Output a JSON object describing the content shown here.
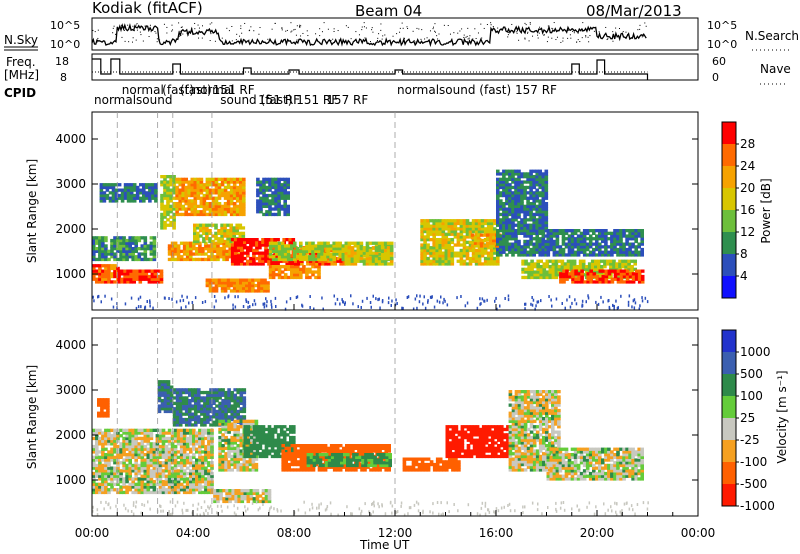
{
  "header": {
    "station": "Kodiak (fitACF)",
    "beam": "Beam 04",
    "date": "08/Mar/2013"
  },
  "noise_panel": {
    "left_label": "N.Sky",
    "right_label": "N.Search",
    "left_ticks": [
      "10^5",
      "10^0"
    ],
    "right_ticks": [
      "10^5",
      "10^0"
    ]
  },
  "freq_panel": {
    "left_label_1": "Freq.",
    "left_label_2": "[MHz]",
    "left_ticks": [
      "18",
      "8"
    ],
    "right_label": "Nave",
    "right_ticks": [
      "60",
      "0"
    ]
  },
  "cpid": {
    "label": "CPID",
    "labels": [
      {
        "text": "normal",
        "t": 1.1,
        "row": 1
      },
      {
        "text": "(fast)",
        "t": 2.7,
        "row": 1
      },
      {
        "text": "(fast)",
        "t": 3.4,
        "row": 1
      },
      {
        "text": "normalsound",
        "t": 0.0,
        "row": 2
      },
      {
        "text": "normal",
        "t": 3.9,
        "row": 1
      },
      {
        "text": "151 RF",
        "t": 4.7,
        "row": 1
      },
      {
        "text": "sound (fast) 151 RF",
        "t": 5.0,
        "row": 2
      },
      {
        "text": "151 RF",
        "t": 6.5,
        "row": 2
      },
      {
        "text": "157 RF",
        "t": 9.2,
        "row": 2
      },
      {
        "text": "normalsound (fast) 157 RF",
        "t": 12.0,
        "row": 1
      }
    ],
    "markers": [
      1.0,
      2.6,
      3.2,
      4.75,
      12.0
    ]
  },
  "power_colorbar": {
    "label": "Power [dB]",
    "ticks": [
      "28",
      "24",
      "20",
      "16",
      "12",
      "8",
      "4"
    ],
    "colors": [
      "#ff0000",
      "#ff6a00",
      "#f6a200",
      "#d8c600",
      "#6dbf3b",
      "#2f8f4f",
      "#2c4fbb",
      "#1010ff"
    ]
  },
  "velocity_colorbar": {
    "label": "Velocity [m s⁻¹]",
    "ticks": [
      "1000",
      "500",
      "100",
      "25",
      "-25",
      "-100",
      "-500",
      "-1000"
    ],
    "colors": [
      "#2233cc",
      "#3b5fb0",
      "#2e8a4a",
      "#64cc3a",
      "#c8c8c0",
      "#f5a020",
      "#ff6000",
      "#ff1a00"
    ]
  },
  "slant_axis": {
    "label": "Slant Range [km]",
    "ticks": [
      1000,
      2000,
      3000,
      4000
    ],
    "range": [
      200,
      4600
    ]
  },
  "time_axis": {
    "label": "Time UT",
    "ticks": [
      "00:00",
      "04:00",
      "08:00",
      "12:00",
      "16:00",
      "20:00",
      "00:00"
    ],
    "range_hours": [
      0,
      24
    ]
  },
  "chart_data": {
    "type": "heatmap",
    "title": "Kodiak (fitACF) Beam 04 08/Mar/2013",
    "xlabel": "Time UT",
    "ylabel": "Slant Range [km]",
    "x_range_hours": [
      0,
      24
    ],
    "y_range_km": [
      200,
      4600
    ],
    "data_end_hour": 22.0,
    "power_regions": [
      {
        "t0": 0.0,
        "t1": 1.0,
        "r0": 800,
        "r1": 1200,
        "v": 24
      },
      {
        "t0": 0.0,
        "t1": 2.5,
        "r0": 1300,
        "r1": 1800,
        "v": 8
      },
      {
        "t0": 1.0,
        "t1": 2.8,
        "r0": 800,
        "r1": 1100,
        "v": 26
      },
      {
        "t0": 0.3,
        "t1": 2.5,
        "r0": 2600,
        "r1": 3000,
        "v": 6
      },
      {
        "t0": 2.7,
        "t1": 3.3,
        "r0": 2000,
        "r1": 3200,
        "v": 14
      },
      {
        "t0": 3.3,
        "t1": 6.0,
        "r0": 2300,
        "r1": 3100,
        "v": 20
      },
      {
        "t0": 3.0,
        "t1": 6.0,
        "r0": 1300,
        "r1": 1700,
        "v": 20
      },
      {
        "t0": 4.0,
        "t1": 6.0,
        "r0": 1700,
        "r1": 2100,
        "v": 16
      },
      {
        "t0": 4.5,
        "t1": 7.0,
        "r0": 600,
        "r1": 900,
        "v": 22
      },
      {
        "t0": 5.5,
        "t1": 8.0,
        "r0": 1200,
        "r1": 1800,
        "v": 28
      },
      {
        "t0": 7.0,
        "t1": 9.0,
        "r0": 900,
        "r1": 1200,
        "v": 22
      },
      {
        "t0": 8.0,
        "t1": 10.0,
        "r0": 1200,
        "r1": 1600,
        "v": 24
      },
      {
        "t0": 7.0,
        "t1": 11.8,
        "r0": 1300,
        "r1": 1700,
        "v": 14
      },
      {
        "t0": 6.5,
        "t1": 7.8,
        "r0": 2300,
        "r1": 3100,
        "v": 6
      },
      {
        "t0": 10.0,
        "t1": 11.8,
        "r0": 1200,
        "r1": 1600,
        "v": 16
      },
      {
        "t0": 13.0,
        "t1": 16.0,
        "r0": 1200,
        "r1": 2200,
        "v": 16
      },
      {
        "t0": 15.0,
        "t1": 16.3,
        "r0": 1600,
        "r1": 1900,
        "v": 20
      },
      {
        "t0": 16.0,
        "t1": 18.0,
        "r0": 1400,
        "r1": 3300,
        "v": 6
      },
      {
        "t0": 17.0,
        "t1": 21.5,
        "r0": 900,
        "r1": 1300,
        "v": 14
      },
      {
        "t0": 18.5,
        "t1": 21.8,
        "r0": 800,
        "r1": 1100,
        "v": 26
      },
      {
        "t0": 18.0,
        "t1": 21.8,
        "r0": 1400,
        "r1": 2000,
        "v": 6
      }
    ],
    "velocity_regions": [
      {
        "t0": 0.0,
        "t1": 4.8,
        "r0": 700,
        "r1": 2100,
        "v": 0
      },
      {
        "t0": 0.2,
        "t1": 0.6,
        "r0": 2400,
        "r1": 2800,
        "v": -200
      },
      {
        "t0": 2.6,
        "t1": 3.2,
        "r0": 2500,
        "r1": 3200,
        "v": 300
      },
      {
        "t0": 3.2,
        "t1": 6.0,
        "r0": 2200,
        "r1": 3000,
        "v": 300
      },
      {
        "t0": 4.8,
        "t1": 7.0,
        "r0": 500,
        "r1": 800,
        "v": 0
      },
      {
        "t0": 5.0,
        "t1": 6.5,
        "r0": 1200,
        "r1": 2300,
        "v": 0
      },
      {
        "t0": 6.0,
        "t1": 8.0,
        "r0": 1500,
        "r1": 2200,
        "v": 200
      },
      {
        "t0": 7.5,
        "t1": 11.8,
        "r0": 1200,
        "r1": 1800,
        "v": -200
      },
      {
        "t0": 8.5,
        "t1": 11.8,
        "r0": 1300,
        "r1": 1600,
        "v": 100
      },
      {
        "t0": 12.3,
        "t1": 14.5,
        "r0": 1200,
        "r1": 1500,
        "v": -300
      },
      {
        "t0": 14.0,
        "t1": 16.5,
        "r0": 1500,
        "r1": 2200,
        "v": -600
      },
      {
        "t0": 16.5,
        "t1": 18.5,
        "r0": 1200,
        "r1": 3000,
        "v": 0
      },
      {
        "t0": 18.0,
        "t1": 21.8,
        "r0": 1000,
        "r1": 1700,
        "v": 0
      }
    ],
    "noise_sky_level": "10^0 to 10^5",
    "freq_level_mhz": 10.5
  }
}
